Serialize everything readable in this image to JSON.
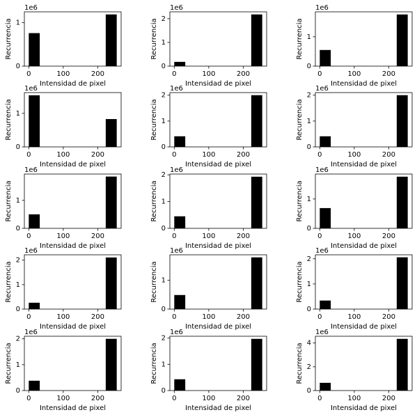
{
  "chart_data": [
    {
      "type": "histogram",
      "bins": [
        0,
        31.875,
        63.75,
        95.625,
        127.5,
        159.375,
        191.25,
        223.125,
        255
      ],
      "values": [
        0.76,
        0,
        0,
        0,
        0,
        0,
        0,
        1.19
      ],
      "color": "#000000",
      "xlabel": "Intensidad de pixel",
      "ylabel": "Recurrencia",
      "y_offset_label": "1e6",
      "xlim": [
        -12.75,
        267.75
      ],
      "xticks": [
        0,
        100,
        200
      ],
      "ylim": [
        0,
        1.25
      ],
      "yticks": [
        0,
        1
      ]
    },
    {
      "type": "histogram",
      "bins": [
        0,
        31.875,
        63.75,
        95.625,
        127.5,
        159.375,
        191.25,
        223.125,
        255
      ],
      "values": [
        0.18,
        0,
        0,
        0,
        0,
        0,
        0,
        2.18
      ],
      "color": "#000000",
      "xlabel": "Intensidad de pixel",
      "ylabel": "Recurrencia",
      "y_offset_label": "1e6",
      "xlim": [
        -12.75,
        267.75
      ],
      "xticks": [
        0,
        100,
        200
      ],
      "ylim": [
        0,
        2.29
      ],
      "yticks": [
        0,
        1,
        2
      ]
    },
    {
      "type": "histogram",
      "bins": [
        0,
        31.875,
        63.75,
        95.625,
        127.5,
        159.375,
        191.25,
        223.125,
        255
      ],
      "values": [
        0.55,
        0,
        0,
        0,
        0,
        0,
        0,
        1.76
      ],
      "color": "#000000",
      "xlabel": "Intensidad de pixel",
      "ylabel": "Recurrencia",
      "y_offset_label": "1e6",
      "xlim": [
        -12.75,
        267.75
      ],
      "xticks": [
        0,
        100,
        200
      ],
      "ylim": [
        0,
        1.85
      ],
      "yticks": [
        0,
        1
      ]
    },
    {
      "type": "histogram",
      "bins": [
        0,
        31.875,
        63.75,
        95.625,
        127.5,
        159.375,
        191.25,
        223.125,
        255
      ],
      "values": [
        1.54,
        0,
        0,
        0,
        0,
        0,
        0,
        0.83
      ],
      "color": "#000000",
      "xlabel": "Intensidad de pixel",
      "ylabel": "Recurrencia",
      "y_offset_label": "1e6",
      "xlim": [
        -12.75,
        267.75
      ],
      "xticks": [
        0,
        100,
        200
      ],
      "ylim": [
        0,
        1.62
      ],
      "yticks": [
        0,
        1
      ]
    },
    {
      "type": "histogram",
      "bins": [
        0,
        31.875,
        63.75,
        95.625,
        127.5,
        159.375,
        191.25,
        223.125,
        255
      ],
      "values": [
        0.41,
        0,
        0,
        0,
        0,
        0,
        0,
        2.0
      ],
      "color": "#000000",
      "xlabel": "Intensidad de pixel",
      "ylabel": "Recurrencia",
      "y_offset_label": "1e6",
      "xlim": [
        -12.75,
        267.75
      ],
      "xticks": [
        0,
        100,
        200
      ],
      "ylim": [
        0,
        2.1
      ],
      "yticks": [
        0,
        1,
        2
      ]
    },
    {
      "type": "histogram",
      "bins": [
        0,
        31.875,
        63.75,
        95.625,
        127.5,
        159.375,
        191.25,
        223.125,
        255
      ],
      "values": [
        0.41,
        0,
        0,
        0,
        0,
        0,
        0,
        2.0
      ],
      "color": "#000000",
      "xlabel": "Intensidad de pixel",
      "ylabel": "Recurrencia",
      "y_offset_label": "1e6",
      "xlim": [
        -12.75,
        267.75
      ],
      "xticks": [
        0,
        100,
        200
      ],
      "ylim": [
        0,
        2.1
      ],
      "yticks": [
        0,
        1,
        2
      ]
    },
    {
      "type": "histogram",
      "bins": [
        0,
        31.875,
        63.75,
        95.625,
        127.5,
        159.375,
        191.25,
        223.125,
        255
      ],
      "values": [
        0.5,
        0,
        0,
        0,
        0,
        0,
        0,
        1.85
      ],
      "color": "#000000",
      "xlabel": "Intensidad de pixel",
      "ylabel": "Recurrencia",
      "y_offset_label": "1e6",
      "xlim": [
        -12.75,
        267.75
      ],
      "xticks": [
        0,
        100,
        200
      ],
      "ylim": [
        0,
        1.94
      ],
      "yticks": [
        0,
        1
      ]
    },
    {
      "type": "histogram",
      "bins": [
        0,
        31.875,
        63.75,
        95.625,
        127.5,
        159.375,
        191.25,
        223.125,
        255
      ],
      "values": [
        0.45,
        0,
        0,
        0,
        0,
        0,
        0,
        1.93
      ],
      "color": "#000000",
      "xlabel": "Intensidad de pixel",
      "ylabel": "Recurrencia",
      "y_offset_label": "1e6",
      "xlim": [
        -12.75,
        267.75
      ],
      "xticks": [
        0,
        100,
        200
      ],
      "ylim": [
        0,
        2.03
      ],
      "yticks": [
        0,
        1,
        2
      ]
    },
    {
      "type": "histogram",
      "bins": [
        0,
        31.875,
        63.75,
        95.625,
        127.5,
        159.375,
        191.25,
        223.125,
        255
      ],
      "values": [
        0.69,
        0,
        0,
        0,
        0,
        0,
        0,
        1.76
      ],
      "color": "#000000",
      "xlabel": "Intensidad de pixel",
      "ylabel": "Recurrencia",
      "y_offset_label": "1e6",
      "xlim": [
        -12.75,
        267.75
      ],
      "xticks": [
        0,
        100,
        200
      ],
      "ylim": [
        0,
        1.85
      ],
      "yticks": [
        0,
        1
      ]
    },
    {
      "type": "histogram",
      "bins": [
        0,
        31.875,
        63.75,
        95.625,
        127.5,
        159.375,
        191.25,
        223.125,
        255
      ],
      "values": [
        0.26,
        0,
        0,
        0,
        0,
        0,
        0,
        2.11
      ],
      "color": "#000000",
      "xlabel": "Intensidad de pixel",
      "ylabel": "Recurrencia",
      "y_offset_label": "1e6",
      "xlim": [
        -12.75,
        267.75
      ],
      "xticks": [
        0,
        100,
        200
      ],
      "ylim": [
        0,
        2.22
      ],
      "yticks": [
        0,
        1,
        2
      ]
    },
    {
      "type": "histogram",
      "bins": [
        0,
        31.875,
        63.75,
        95.625,
        127.5,
        159.375,
        191.25,
        223.125,
        255
      ],
      "values": [
        0.49,
        0,
        0,
        0,
        0,
        0,
        0,
        1.8
      ],
      "color": "#000000",
      "xlabel": "Intensidad de pixel",
      "ylabel": "Recurrencia",
      "y_offset_label": "1e6",
      "xlim": [
        -12.75,
        267.75
      ],
      "xticks": [
        0,
        100,
        200
      ],
      "ylim": [
        0,
        1.89
      ],
      "yticks": [
        0,
        1
      ]
    },
    {
      "type": "histogram",
      "bins": [
        0,
        31.875,
        63.75,
        95.625,
        127.5,
        159.375,
        191.25,
        223.125,
        255
      ],
      "values": [
        0.34,
        0,
        0,
        0,
        0,
        0,
        0,
        2.06
      ],
      "color": "#000000",
      "xlabel": "Intensidad de pixel",
      "ylabel": "Recurrencia",
      "y_offset_label": "1e6",
      "xlim": [
        -12.75,
        267.75
      ],
      "xticks": [
        0,
        100,
        200
      ],
      "ylim": [
        0,
        2.16
      ],
      "yticks": [
        0,
        1,
        2
      ]
    },
    {
      "type": "histogram",
      "bins": [
        0,
        31.875,
        63.75,
        95.625,
        127.5,
        159.375,
        191.25,
        223.125,
        255
      ],
      "values": [
        0.38,
        0,
        0,
        0,
        0,
        0,
        0,
        2.0
      ],
      "color": "#000000",
      "xlabel": "Intensidad de pixel",
      "ylabel": "Recurrencia",
      "y_offset_label": "1e6",
      "xlim": [
        -12.75,
        267.75
      ],
      "xticks": [
        0,
        100,
        200
      ],
      "ylim": [
        0,
        2.1
      ],
      "yticks": [
        0,
        1,
        2
      ]
    },
    {
      "type": "histogram",
      "bins": [
        0,
        31.875,
        63.75,
        95.625,
        127.5,
        159.375,
        191.25,
        223.125,
        255
      ],
      "values": [
        0.43,
        0,
        0,
        0,
        0,
        0,
        0,
        1.97
      ],
      "color": "#000000",
      "xlabel": "Intensidad de pixel",
      "ylabel": "Recurrencia",
      "y_offset_label": "1e6",
      "xlim": [
        -12.75,
        267.75
      ],
      "xticks": [
        0,
        100,
        200
      ],
      "ylim": [
        0,
        2.07
      ],
      "yticks": [
        0,
        1,
        2
      ]
    },
    {
      "type": "histogram",
      "bins": [
        0,
        31.875,
        63.75,
        95.625,
        127.5,
        159.375,
        191.25,
        223.125,
        255
      ],
      "values": [
        0.65,
        0,
        0,
        0,
        0,
        0,
        0,
        4.35
      ],
      "color": "#000000",
      "xlabel": "Intensidad de pixel",
      "ylabel": "Recurrencia",
      "y_offset_label": "1e6",
      "xlim": [
        -12.75,
        267.75
      ],
      "xticks": [
        0,
        100,
        200
      ],
      "ylim": [
        0,
        4.57
      ],
      "yticks": [
        0,
        2,
        4
      ]
    }
  ]
}
